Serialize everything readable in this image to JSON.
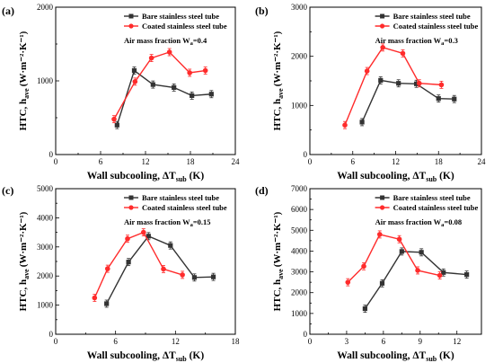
{
  "chart_data": [
    {
      "panel_label": "(a)",
      "type": "line",
      "annotation": {
        "prefix": "Air mass fraction  W",
        "sub": "a",
        "value": "=0.4"
      },
      "xlabel": "Wall subcooling, ΔT",
      "xlabel_sub": "sub",
      "xlabel_unit": " (K)",
      "ylabel": "HTC, h",
      "ylabel_sub": "ave",
      "ylabel_unit": "(W·m⁻²·K⁻¹)",
      "xlim": [
        0,
        24
      ],
      "ylim": [
        0,
        2000
      ],
      "xticks": [
        0,
        6,
        12,
        18,
        24
      ],
      "yticks": [
        0,
        1000,
        2000
      ],
      "series": [
        {
          "name": "Bare stainless steel tube",
          "color": "#333333",
          "marker": "square",
          "x": [
            8.2,
            10.5,
            13.0,
            15.8,
            18.2,
            20.8
          ],
          "y": [
            400,
            1140,
            950,
            910,
            800,
            820
          ]
        },
        {
          "name": "Coated stainless steel tube",
          "color": "#ff2b2b",
          "marker": "circle",
          "x": [
            7.8,
            10.6,
            12.8,
            15.2,
            17.9,
            20.0
          ],
          "y": [
            480,
            990,
            1310,
            1390,
            1110,
            1140
          ]
        }
      ]
    },
    {
      "panel_label": "(b)",
      "type": "line",
      "annotation": {
        "prefix": "Air mass fraction  W",
        "sub": "a",
        "value": "=0.3"
      },
      "xlabel": "Wall subcooling, ΔT",
      "xlabel_sub": "sub",
      "xlabel_unit": " (K)",
      "ylabel": "HTC, h",
      "ylabel_sub": "ave",
      "ylabel_unit": "(W·m⁻²·K⁻¹)",
      "xlim": [
        0,
        24
      ],
      "ylim": [
        0,
        3000
      ],
      "xticks": [
        0,
        6,
        12,
        18,
        24
      ],
      "yticks": [
        0,
        1000,
        2000,
        3000
      ],
      "series": [
        {
          "name": "Bare stainless steel tube",
          "color": "#333333",
          "marker": "square",
          "x": [
            7.3,
            9.9,
            12.4,
            14.9,
            18.0,
            20.2
          ],
          "y": [
            660,
            1510,
            1450,
            1440,
            1140,
            1130
          ]
        },
        {
          "name": "Coated stainless steel tube",
          "color": "#ff2b2b",
          "marker": "circle",
          "x": [
            4.9,
            8.0,
            10.2,
            13.0,
            15.3,
            18.4
          ],
          "y": [
            600,
            1700,
            2180,
            2060,
            1450,
            1420
          ]
        }
      ]
    },
    {
      "panel_label": "(c)",
      "type": "line",
      "annotation": {
        "prefix": "Air mass fraction  W",
        "sub": "a",
        "value": "=0.15"
      },
      "xlabel": "Wall subcooling, ΔT",
      "xlabel_sub": "sub",
      "xlabel_unit": " (K)",
      "ylabel": "HTC, h",
      "ylabel_sub": "ave",
      "ylabel_unit": "(W·m⁻²·K⁻¹)",
      "xlim": [
        0,
        18
      ],
      "ylim": [
        0,
        5000
      ],
      "xticks": [
        0,
        6,
        12,
        18
      ],
      "yticks": [
        0,
        1000,
        2000,
        3000,
        4000,
        5000
      ],
      "series": [
        {
          "name": "Bare stainless steel tube",
          "color": "#333333",
          "marker": "square",
          "x": [
            5.1,
            7.3,
            9.3,
            11.5,
            13.9,
            15.8
          ],
          "y": [
            1050,
            2480,
            3370,
            3050,
            1950,
            1970
          ]
        },
        {
          "name": "Coated stainless steel tube",
          "color": "#ff2b2b",
          "marker": "circle",
          "x": [
            3.9,
            5.2,
            7.2,
            8.8,
            10.8,
            12.7
          ],
          "y": [
            1250,
            2250,
            3280,
            3500,
            2240,
            2040
          ]
        }
      ]
    },
    {
      "panel_label": "(d)",
      "type": "line",
      "annotation": {
        "prefix": "Air mass fraction  W",
        "sub": "a",
        "value": "=0.08"
      },
      "xlabel": "Wall subcooling, ΔT",
      "xlabel_sub": "sub",
      "xlabel_unit": " (K)",
      "ylabel": "HTC, h",
      "ylabel_sub": "ave",
      "ylabel_unit": "(W·m⁻²·K⁻¹)",
      "xlim": [
        0,
        14
      ],
      "ylim": [
        0,
        7000
      ],
      "xticks": [
        0,
        3,
        6,
        9,
        12
      ],
      "yticks": [
        0,
        1000,
        2000,
        3000,
        4000,
        5000,
        6000,
        7000
      ],
      "series": [
        {
          "name": "Bare stainless steel tube",
          "color": "#333333",
          "marker": "square",
          "x": [
            4.5,
            5.9,
            7.5,
            9.1,
            10.9,
            12.8
          ],
          "y": [
            1230,
            2450,
            3980,
            3940,
            2970,
            2870
          ]
        },
        {
          "name": "Coated stainless steel tube",
          "color": "#ff2b2b",
          "marker": "circle",
          "x": [
            3.1,
            4.4,
            5.7,
            7.3,
            8.8,
            10.6
          ],
          "y": [
            2500,
            3270,
            4800,
            4570,
            3070,
            2830
          ]
        }
      ]
    }
  ]
}
